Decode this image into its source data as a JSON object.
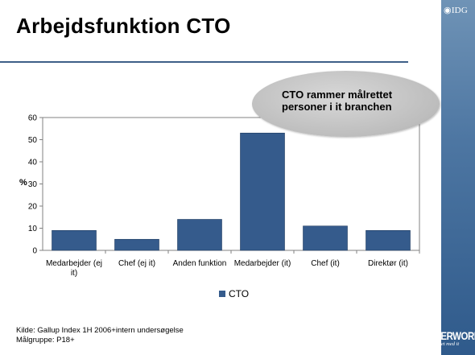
{
  "slide": {
    "title": "Arbejdsfunktion CTO",
    "callout": "CTO rammer målrettet personer i it branchen",
    "source_line1": "Kilde: Gallup Index 1H 2006+intern undersøgelse",
    "source_line2": "Målgruppe: P18+"
  },
  "logos": {
    "idg": "IDG",
    "computerworld": "COMPUTERWORLD",
    "computerworld_tagline": "hvis du vil noget med it"
  },
  "colors": {
    "bar": "#355b8c",
    "band": "#4d76a2",
    "rule": "#3e5f88"
  },
  "chart_data": {
    "type": "bar",
    "categories": [
      "Medarbejder (ej it)",
      "Chef (ej it)",
      "Anden funktion",
      "Medarbejder (it)",
      "Chef (it)",
      "Direktør (it)"
    ],
    "category_lines": [
      [
        "Medarbejder (ej",
        "it)"
      ],
      [
        "Chef (ej it)"
      ],
      [
        "Anden funktion"
      ],
      [
        "Medarbejder (it)"
      ],
      [
        "Chef (it)"
      ],
      [
        "Direktør (it)"
      ]
    ],
    "series": [
      {
        "name": "CTO",
        "values": [
          9,
          5,
          14,
          53,
          11,
          9
        ]
      }
    ],
    "ylabel": "%",
    "ylim": [
      0,
      60
    ],
    "yticks": [
      0,
      10,
      20,
      30,
      40,
      50,
      60
    ],
    "grid": false,
    "legend": "bottom"
  }
}
